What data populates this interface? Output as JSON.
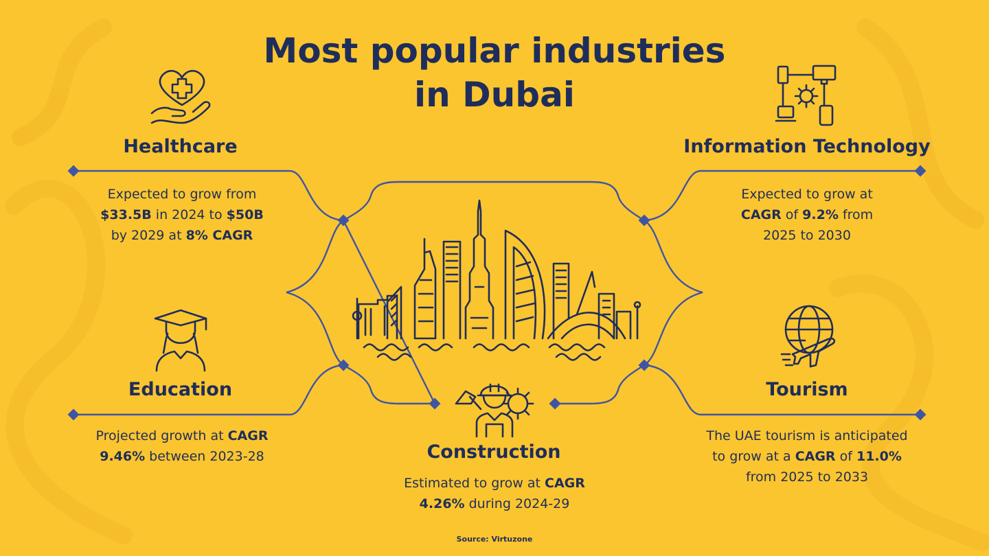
{
  "title": {
    "line1": "Most popular industries",
    "line2": "in Dubai"
  },
  "industries": {
    "healthcare": {
      "name": "Healthcare",
      "icon": "heart-hand-medical-icon",
      "desc": [
        [
          {
            "t": "Expected to grow from",
            "b": false
          }
        ],
        [
          {
            "t": "$33.5B",
            "b": true
          },
          {
            "t": " in 2024 to ",
            "b": false
          },
          {
            "t": "$50B",
            "b": true
          }
        ],
        [
          {
            "t": "by 2029 at ",
            "b": false
          },
          {
            "t": "8% CAGR",
            "b": true
          }
        ]
      ]
    },
    "it": {
      "name": "Information Technology",
      "icon": "network-devices-gear-icon",
      "desc": [
        [
          {
            "t": "Expected to grow at",
            "b": false
          }
        ],
        [
          {
            "t": "CAGR",
            "b": true
          },
          {
            "t": " of ",
            "b": false
          },
          {
            "t": "9.2%",
            "b": true
          },
          {
            "t": " from",
            "b": false
          }
        ],
        [
          {
            "t": "2025 to 2030",
            "b": false
          }
        ]
      ]
    },
    "education": {
      "name": "Education",
      "icon": "graduate-icon",
      "desc": [
        [
          {
            "t": "Projected growth at ",
            "b": false
          },
          {
            "t": "CAGR",
            "b": true
          }
        ],
        [
          {
            "t": "9.46%",
            "b": true
          },
          {
            "t": " between 2023-28",
            "b": false
          }
        ]
      ]
    },
    "tourism": {
      "name": "Tourism",
      "icon": "globe-plane-icon",
      "desc": [
        [
          {
            "t": "The UAE tourism is anticipated",
            "b": false
          }
        ],
        [
          {
            "t": "to grow at a ",
            "b": false
          },
          {
            "t": "CAGR",
            "b": true
          },
          {
            "t": " of ",
            "b": false
          },
          {
            "t": "11.0%",
            "b": true
          }
        ],
        [
          {
            "t": "from 2025 to 2033",
            "b": false
          }
        ]
      ]
    },
    "construction": {
      "name": "Construction",
      "icon": "construction-worker-icon",
      "desc": [
        [
          {
            "t": "Estimated to grow at ",
            "b": false
          },
          {
            "t": "CAGR",
            "b": true
          }
        ],
        [
          {
            "t": "4.26%",
            "b": true
          },
          {
            "t": " during 2024-29",
            "b": false
          }
        ]
      ]
    }
  },
  "center_icon": "dubai-skyline-icon",
  "source": "Source: Virtuzone",
  "colors": {
    "background": "#fbc52f",
    "text": "#1f2d5a",
    "frame": "#3f55a3"
  }
}
